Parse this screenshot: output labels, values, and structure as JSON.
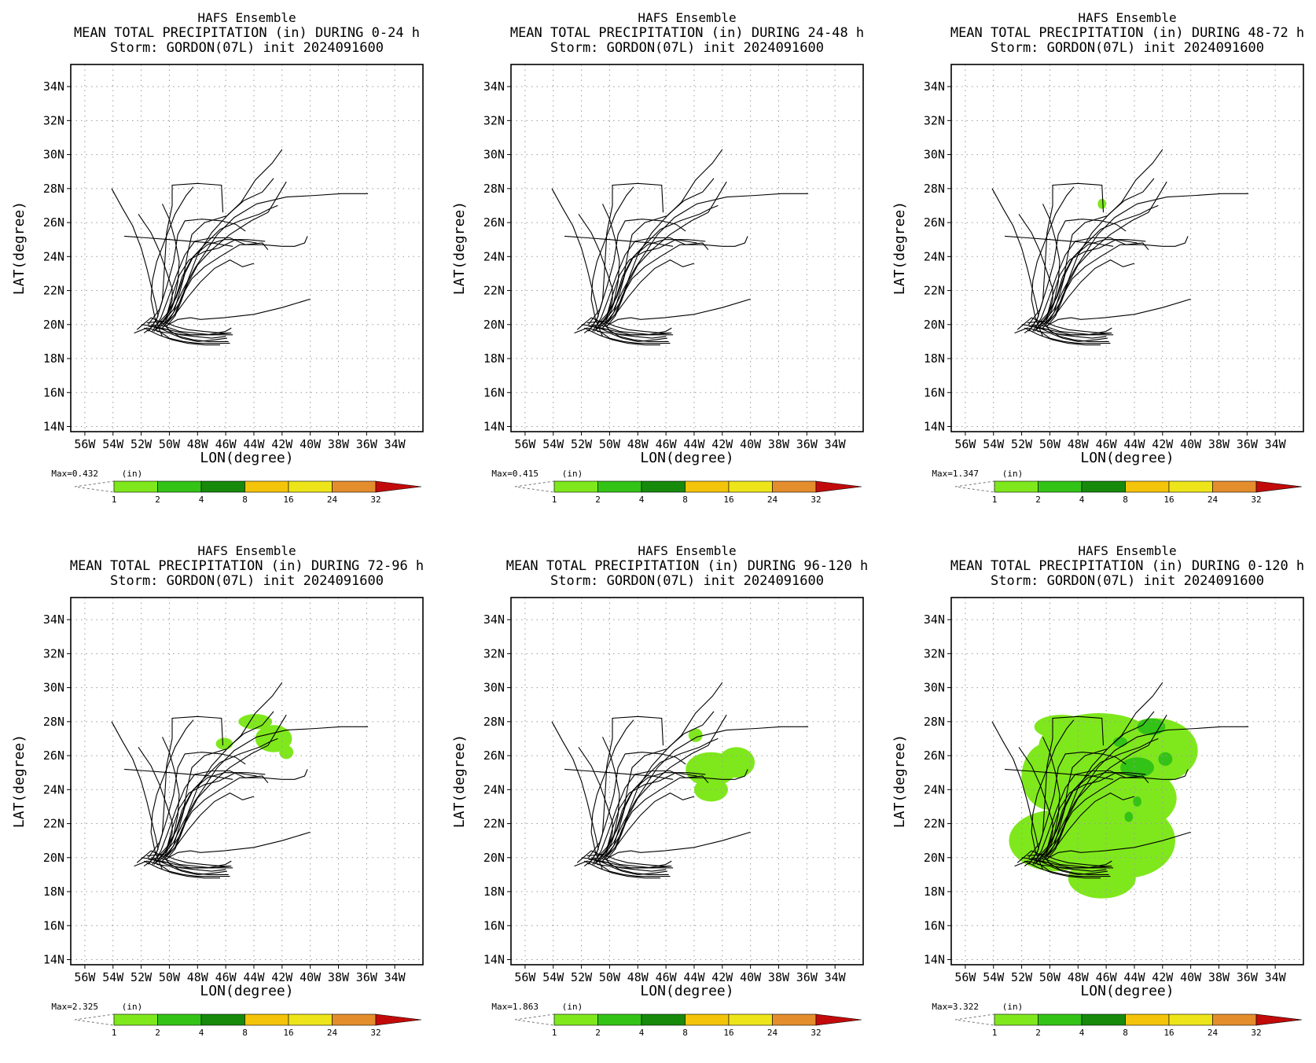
{
  "figure": {
    "panels": [
      {
        "title1": "HAFS Ensemble",
        "title2": "MEAN TOTAL PRECIPITATION (in) DURING  0-24 h",
        "title3": "Storm: GORDON(07L) init 2024091600",
        "max_label": "Max=0.432",
        "units": "(in)"
      },
      {
        "title1": "HAFS Ensemble",
        "title2": "MEAN TOTAL PRECIPITATION (in) DURING 24-48 h",
        "title3": "Storm: GORDON(07L) init 2024091600",
        "max_label": "Max=0.415",
        "units": "(in)"
      },
      {
        "title1": "HAFS Ensemble",
        "title2": "MEAN TOTAL PRECIPITATION (in) DURING 48-72 h",
        "title3": "Storm: GORDON(07L) init 2024091600",
        "max_label": "Max=1.347",
        "units": "(in)"
      },
      {
        "title1": "HAFS Ensemble",
        "title2": "MEAN TOTAL PRECIPITATION (in) DURING 72-96 h",
        "title3": "Storm: GORDON(07L) init 2024091600",
        "max_label": "Max=2.325",
        "units": "(in)"
      },
      {
        "title1": "HAFS Ensemble",
        "title2": "MEAN TOTAL PRECIPITATION (in) DURING 96-120 h",
        "title3": "Storm: GORDON(07L) init 2024091600",
        "max_label": "Max=1.863",
        "units": "(in)"
      },
      {
        "title1": "HAFS Ensemble",
        "title2": "MEAN TOTAL PRECIPITATION (in) DURING 0-120 h",
        "title3": "Storm: GORDON(07L) init 2024091600",
        "max_label": "Max=3.322",
        "units": "(in)"
      }
    ]
  },
  "chart_data": {
    "type": "map",
    "xlabel": "LON(degree)",
    "ylabel": "LAT(degree)",
    "xlim": [
      -57,
      -32
    ],
    "ylim": [
      13.7,
      35.3
    ],
    "xticks": [
      "56W",
      "54W",
      "52W",
      "50W",
      "48W",
      "46W",
      "44W",
      "42W",
      "40W",
      "38W",
      "36W",
      "34W"
    ],
    "xtick_values": [
      -56,
      -54,
      -52,
      -50,
      -48,
      -46,
      -44,
      -42,
      -40,
      -38,
      -36,
      -34
    ],
    "yticks": [
      "14N",
      "16N",
      "18N",
      "20N",
      "22N",
      "24N",
      "26N",
      "28N",
      "30N",
      "32N",
      "34N"
    ],
    "ytick_values": [
      14,
      16,
      18,
      20,
      22,
      24,
      26,
      28,
      30,
      32,
      34
    ],
    "grid": true,
    "colorbar": {
      "levels": [
        "1",
        "2",
        "4",
        "8",
        "16",
        "24",
        "32"
      ],
      "colors": [
        "#7fe81c",
        "#33c316",
        "#178a0c",
        "#f4c40a",
        "#ede41a",
        "#e38d2c",
        "#c30a0a"
      ]
    },
    "tracks": [
      [
        [
          -50.5,
          19.3
        ],
        [
          -51.0,
          20.3
        ],
        [
          -51.3,
          21.5
        ],
        [
          -51.2,
          22.6
        ],
        [
          -50.9,
          23.7
        ],
        [
          -50.3,
          25.0
        ],
        [
          -49.6,
          26.5
        ],
        [
          -48.8,
          27.6
        ],
        [
          -48.3,
          28.1
        ]
      ],
      [
        [
          -51.8,
          19.5
        ],
        [
          -51.3,
          19.8
        ],
        [
          -50.8,
          20.5
        ],
        [
          -51.0,
          21.3
        ],
        [
          -51.3,
          22.3
        ],
        [
          -51.6,
          23.3
        ],
        [
          -52.0,
          24.5
        ],
        [
          -52.6,
          25.8
        ],
        [
          -53.3,
          26.8
        ],
        [
          -54.1,
          28.0
        ]
      ],
      [
        [
          -51.0,
          19.7
        ],
        [
          -50.3,
          20.3
        ],
        [
          -49.7,
          21.3
        ],
        [
          -49.4,
          22.5
        ],
        [
          -49.3,
          23.7
        ],
        [
          -49.6,
          25.0
        ],
        [
          -50.0,
          26.2
        ],
        [
          -50.5,
          27.1
        ]
      ],
      [
        [
          -51.0,
          19.9
        ],
        [
          -50.2,
          20.6
        ],
        [
          -49.5,
          21.6
        ],
        [
          -49.0,
          22.8
        ],
        [
          -48.7,
          24.2
        ],
        [
          -48.4,
          25.3
        ],
        [
          -47.5,
          26.0
        ],
        [
          -45.9,
          26.4
        ],
        [
          -44.9,
          27.2
        ],
        [
          -43.9,
          28.5
        ],
        [
          -42.7,
          29.5
        ],
        [
          -42.0,
          30.3
        ]
      ],
      [
        [
          -50.5,
          19.8
        ],
        [
          -49.6,
          20.6
        ],
        [
          -49.1,
          21.7
        ],
        [
          -48.4,
          22.7
        ],
        [
          -47.5,
          23.4
        ],
        [
          -46.4,
          24.0
        ],
        [
          -45.0,
          24.7
        ],
        [
          -43.4,
          24.7
        ],
        [
          -42.0,
          24.6
        ],
        [
          -41.1,
          24.6
        ],
        [
          -40.4,
          24.8
        ],
        [
          -40.2,
          25.2
        ]
      ],
      [
        [
          -50.3,
          19.9
        ],
        [
          -49.4,
          20.3
        ],
        [
          -48.5,
          20.4
        ],
        [
          -47.8,
          20.3
        ],
        [
          -46.1,
          20.4
        ],
        [
          -44.0,
          20.6
        ],
        [
          -42.0,
          21.0
        ],
        [
          -40.0,
          21.5
        ]
      ],
      [
        [
          -50.6,
          20.0
        ],
        [
          -49.7,
          20.9
        ],
        [
          -49.0,
          22.1
        ],
        [
          -48.2,
          23.3
        ],
        [
          -47.4,
          24.3
        ],
        [
          -46.6,
          25.3
        ],
        [
          -45.4,
          26.3
        ],
        [
          -43.8,
          27.1
        ],
        [
          -41.7,
          27.5
        ],
        [
          -39.6,
          27.6
        ],
        [
          -37.8,
          27.7
        ],
        [
          -35.9,
          27.7
        ]
      ],
      [
        [
          -51.1,
          19.6
        ],
        [
          -50.0,
          20.3
        ],
        [
          -49.2,
          21.4
        ],
        [
          -48.6,
          22.8
        ],
        [
          -48.0,
          24.1
        ],
        [
          -47.0,
          25.4
        ],
        [
          -45.8,
          26.5
        ],
        [
          -44.7,
          27.3
        ],
        [
          -43.4,
          27.8
        ],
        [
          -42.6,
          28.6
        ]
      ],
      [
        [
          -50.4,
          20.0
        ],
        [
          -49.7,
          20.7
        ],
        [
          -49.3,
          21.8
        ],
        [
          -48.9,
          23.0
        ],
        [
          -48.3,
          24.0
        ],
        [
          -47.3,
          24.7
        ],
        [
          -46.1,
          25.0
        ],
        [
          -44.5,
          25.0
        ],
        [
          -43.2,
          24.9
        ]
      ],
      [
        [
          -51.5,
          19.6
        ],
        [
          -50.9,
          20.3
        ],
        [
          -50.5,
          21.4
        ],
        [
          -50.4,
          22.7
        ],
        [
          -50.3,
          24.0
        ],
        [
          -50.2,
          25.4
        ],
        [
          -49.8,
          27.0
        ],
        [
          -49.8,
          28.2
        ],
        [
          -48.0,
          28.3
        ],
        [
          -46.3,
          28.2
        ],
        [
          -46.2,
          26.6
        ]
      ],
      [
        [
          -51.5,
          20.0
        ],
        [
          -50.7,
          20.9
        ],
        [
          -50.2,
          22.2
        ],
        [
          -49.7,
          23.7
        ],
        [
          -49.4,
          25.3
        ],
        [
          -48.9,
          26.1
        ],
        [
          -47.7,
          26.2
        ],
        [
          -46.3,
          26.1
        ],
        [
          -45.3,
          25.9
        ],
        [
          -44.6,
          25.5
        ]
      ],
      [
        [
          -50.2,
          19.9
        ],
        [
          -49.6,
          20.5
        ],
        [
          -49.2,
          21.3
        ],
        [
          -48.7,
          22.4
        ],
        [
          -48.0,
          23.5
        ],
        [
          -47.0,
          24.4
        ],
        [
          -45.7,
          25.3
        ],
        [
          -44.2,
          26.1
        ],
        [
          -43.0,
          26.6
        ],
        [
          -42.2,
          27.7
        ],
        [
          -41.7,
          28.4
        ]
      ],
      [
        [
          -50.8,
          19.9
        ],
        [
          -50.2,
          20.5
        ],
        [
          -49.8,
          21.7
        ],
        [
          -49.3,
          22.9
        ],
        [
          -48.6,
          23.8
        ],
        [
          -47.5,
          24.3
        ],
        [
          -46.5,
          24.5
        ],
        [
          -45.3,
          25.0
        ],
        [
          -43.8,
          24.8
        ]
      ],
      [
        [
          -50.3,
          20.0
        ],
        [
          -49.5,
          20.7
        ],
        [
          -48.7,
          21.6
        ],
        [
          -47.8,
          22.5
        ],
        [
          -46.8,
          23.3
        ],
        [
          -45.7,
          23.8
        ],
        [
          -44.8,
          23.4
        ],
        [
          -44.0,
          23.6
        ]
      ],
      [
        [
          -51.2,
          19.6
        ],
        [
          -50.6,
          20.4
        ],
        [
          -50.1,
          21.5
        ],
        [
          -49.5,
          22.9
        ],
        [
          -48.9,
          24.1
        ],
        [
          -48.2,
          24.9
        ],
        [
          -47.0,
          25.1
        ],
        [
          -45.7,
          25.1
        ],
        [
          -44.6,
          24.7
        ],
        [
          -43.4,
          24.8
        ],
        [
          -43.0,
          24.4
        ]
      ],
      [
        [
          -50.4,
          20.0
        ],
        [
          -49.9,
          20.8
        ],
        [
          -49.5,
          21.7
        ],
        [
          -49.1,
          22.8
        ],
        [
          -48.4,
          23.9
        ],
        [
          -47.5,
          24.7
        ],
        [
          -46.4,
          25.6
        ],
        [
          -45.0,
          26.1
        ],
        [
          -43.6,
          26.5
        ],
        [
          -42.9,
          26.8
        ],
        [
          -42.3,
          27.0
        ]
      ],
      [
        [
          -52.2,
          26.5
        ],
        [
          -51.3,
          25.4
        ],
        [
          -50.7,
          24.3
        ],
        [
          -50.2,
          23.1
        ],
        [
          -49.8,
          22.1
        ],
        [
          -49.8,
          21.4
        ],
        [
          -50.2,
          20.5
        ]
      ],
      [
        [
          -53.2,
          25.2
        ],
        [
          -51.6,
          25.1
        ],
        [
          -50.0,
          25.0
        ],
        [
          -48.5,
          24.9
        ],
        [
          -47.0,
          24.8
        ],
        [
          -45.5,
          24.6
        ]
      ],
      [
        [
          -52.3,
          19.7
        ],
        [
          -51.3,
          20.4
        ],
        [
          -50.5,
          20.1
        ],
        [
          -49.8,
          19.5
        ],
        [
          -49.0,
          19.4
        ],
        [
          -48.0,
          19.4
        ],
        [
          -46.5,
          19.4
        ],
        [
          -45.5,
          19.4
        ]
      ],
      [
        [
          -52.5,
          19.5
        ],
        [
          -51.6,
          19.8
        ],
        [
          -50.7,
          19.6
        ],
        [
          -50.0,
          19.2
        ],
        [
          -49.0,
          19.0
        ],
        [
          -48.0,
          18.9
        ],
        [
          -46.5,
          18.9
        ],
        [
          -45.7,
          18.9
        ]
      ],
      [
        [
          -52.0,
          20.0
        ],
        [
          -51.0,
          19.9
        ],
        [
          -50.2,
          19.6
        ],
        [
          -49.2,
          19.4
        ],
        [
          -48.2,
          19.3
        ],
        [
          -47.0,
          19.2
        ],
        [
          -46.0,
          19.3
        ]
      ],
      [
        [
          -51.6,
          20.1
        ],
        [
          -50.5,
          20.2
        ],
        [
          -49.6,
          19.9
        ],
        [
          -48.7,
          19.7
        ],
        [
          -47.6,
          19.6
        ],
        [
          -46.3,
          19.5
        ],
        [
          -45.6,
          19.5
        ]
      ],
      [
        [
          -51.8,
          19.8
        ],
        [
          -50.8,
          19.4
        ],
        [
          -49.8,
          19.1
        ],
        [
          -48.7,
          18.9
        ],
        [
          -47.5,
          18.8
        ],
        [
          -46.4,
          18.8
        ]
      ],
      [
        [
          -51.3,
          20.0
        ],
        [
          -50.3,
          19.9
        ],
        [
          -49.3,
          19.6
        ],
        [
          -48.2,
          19.5
        ],
        [
          -47.0,
          19.4
        ],
        [
          -45.7,
          19.5
        ]
      ],
      [
        [
          -51.0,
          19.8
        ],
        [
          -50.1,
          19.7
        ],
        [
          -49.3,
          19.3
        ],
        [
          -48.3,
          19.1
        ],
        [
          -47.2,
          19.0
        ],
        [
          -45.8,
          19.0
        ]
      ],
      [
        [
          -51.5,
          19.9
        ],
        [
          -50.6,
          19.8
        ],
        [
          -49.6,
          19.6
        ],
        [
          -48.5,
          19.4
        ],
        [
          -47.3,
          19.4
        ],
        [
          -46.0,
          19.6
        ],
        [
          -45.6,
          19.8
        ]
      ],
      [
        [
          -50.9,
          19.6
        ],
        [
          -50.0,
          19.5
        ],
        [
          -49.1,
          19.2
        ],
        [
          -48.0,
          19.0
        ],
        [
          -46.8,
          19.1
        ],
        [
          -45.9,
          19.2
        ]
      ]
    ],
    "precip_blobs": {
      "panel3": [
        {
          "cx": -46.3,
          "cy": 27.1,
          "rx": 0.3,
          "ry": 0.3,
          "level": 1
        }
      ],
      "panel4": [
        {
          "cx": -43.9,
          "cy": 28.0,
          "rx": 1.2,
          "ry": 0.45,
          "level": 1
        },
        {
          "cx": -42.6,
          "cy": 27.0,
          "rx": 1.3,
          "ry": 0.8,
          "level": 1
        },
        {
          "cx": -41.7,
          "cy": 26.2,
          "rx": 0.5,
          "ry": 0.4,
          "level": 1
        },
        {
          "cx": -46.1,
          "cy": 26.7,
          "rx": 0.6,
          "ry": 0.35,
          "level": 1
        }
      ],
      "panel5": [
        {
          "cx": -42.8,
          "cy": 25.2,
          "rx": 1.8,
          "ry": 1.0,
          "level": 1
        },
        {
          "cx": -41.0,
          "cy": 25.6,
          "rx": 1.3,
          "ry": 0.9,
          "level": 1
        },
        {
          "cx": -42.8,
          "cy": 24.0,
          "rx": 1.2,
          "ry": 0.7,
          "level": 1
        },
        {
          "cx": -43.9,
          "cy": 27.2,
          "rx": 0.5,
          "ry": 0.4,
          "level": 1
        }
      ],
      "panel6_level1": [
        {
          "cx": -46.5,
          "cy": 26.5,
          "rx": 4.3,
          "ry": 2.0,
          "level": 1
        },
        {
          "cx": -42.5,
          "cy": 26.3,
          "rx": 3.0,
          "ry": 1.9,
          "level": 1
        },
        {
          "cx": -45.5,
          "cy": 23.5,
          "rx": 4.5,
          "ry": 2.2,
          "level": 1
        },
        {
          "cx": -44.6,
          "cy": 21.0,
          "rx": 3.5,
          "ry": 2.2,
          "level": 1
        },
        {
          "cx": -49.6,
          "cy": 21.0,
          "rx": 3.3,
          "ry": 1.8,
          "level": 1
        },
        {
          "cx": -46.3,
          "cy": 18.8,
          "rx": 2.4,
          "ry": 1.2,
          "level": 1
        },
        {
          "cx": -50.0,
          "cy": 24.8,
          "rx": 2.0,
          "ry": 2.0,
          "level": 1
        },
        {
          "cx": -49.2,
          "cy": 27.7,
          "rx": 1.9,
          "ry": 0.7,
          "level": 1
        }
      ],
      "panel6_level2": [
        {
          "cx": -42.8,
          "cy": 27.7,
          "rx": 1.0,
          "ry": 0.5,
          "level": 2
        },
        {
          "cx": -43.8,
          "cy": 25.3,
          "rx": 1.2,
          "ry": 0.6,
          "level": 2
        },
        {
          "cx": -41.8,
          "cy": 25.8,
          "rx": 0.5,
          "ry": 0.4,
          "level": 2
        },
        {
          "cx": -45.0,
          "cy": 26.8,
          "rx": 0.5,
          "ry": 0.3,
          "level": 2
        },
        {
          "cx": -43.8,
          "cy": 23.3,
          "rx": 0.3,
          "ry": 0.3,
          "level": 2
        },
        {
          "cx": -44.4,
          "cy": 22.4,
          "rx": 0.3,
          "ry": 0.3,
          "level": 2
        }
      ]
    }
  }
}
